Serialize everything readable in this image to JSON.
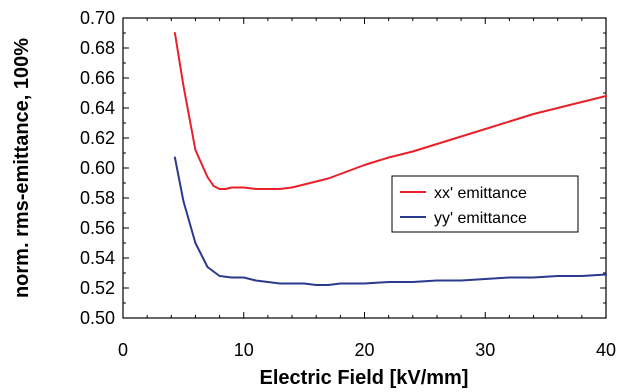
{
  "chart_data": {
    "type": "line",
    "title": "",
    "xlabel": "Electric Field [kV/mm]",
    "ylabel": "norm. rms-emittance, 100%",
    "xlim": [
      0,
      40
    ],
    "ylim": [
      0.5,
      0.7
    ],
    "x_ticks": [
      "0",
      "10",
      "20",
      "30",
      "40"
    ],
    "y_ticks": [
      "0.50",
      "0.52",
      "0.54",
      "0.56",
      "0.58",
      "0.60",
      "0.62",
      "0.64",
      "0.66",
      "0.68",
      "0.70"
    ],
    "grid": false,
    "legend_position": "right",
    "series": [
      {
        "name": "xx' emittance",
        "color": "#e8202a",
        "x": [
          4.3,
          5,
          6,
          7,
          7.5,
          8,
          8.5,
          9,
          10,
          11,
          12,
          13,
          14,
          15,
          16,
          17,
          18,
          19,
          20,
          22,
          24,
          26,
          28,
          30,
          32,
          34,
          36,
          38,
          40
        ],
        "y": [
          0.69,
          0.655,
          0.612,
          0.594,
          0.588,
          0.586,
          0.586,
          0.587,
          0.587,
          0.586,
          0.586,
          0.586,
          0.587,
          0.589,
          0.591,
          0.593,
          0.596,
          0.599,
          0.602,
          0.607,
          0.611,
          0.616,
          0.621,
          0.626,
          0.631,
          0.636,
          0.64,
          0.644,
          0.648
        ]
      },
      {
        "name": "yy' emittance",
        "color": "#2a3a8e",
        "x": [
          4.3,
          5,
          6,
          7,
          8,
          9,
          10,
          11,
          12,
          13,
          14,
          15,
          16,
          17,
          18,
          19,
          20,
          22,
          24,
          26,
          28,
          30,
          32,
          34,
          36,
          38,
          40
        ],
        "y": [
          0.607,
          0.578,
          0.55,
          0.534,
          0.528,
          0.527,
          0.527,
          0.525,
          0.524,
          0.523,
          0.523,
          0.523,
          0.522,
          0.522,
          0.523,
          0.523,
          0.523,
          0.524,
          0.524,
          0.525,
          0.525,
          0.526,
          0.527,
          0.527,
          0.528,
          0.528,
          0.529
        ]
      }
    ]
  }
}
